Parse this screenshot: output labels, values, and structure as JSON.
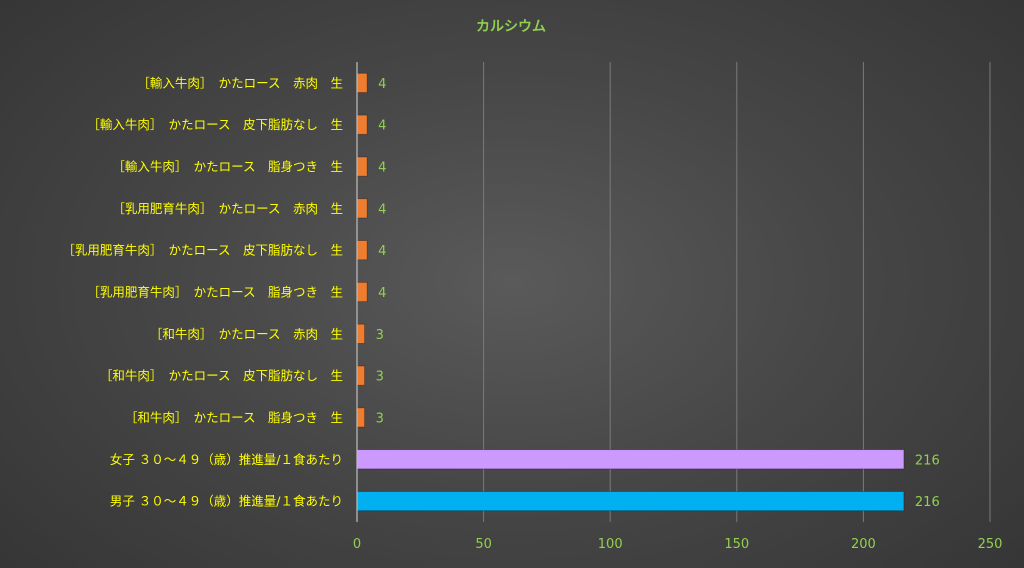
{
  "chart_data": {
    "type": "bar",
    "orientation": "horizontal",
    "title": "カルシウム",
    "categories": [
      "［輸入牛肉］　かたロース　赤肉　生",
      "［輸入牛肉］　かたロース　皮下脂肪なし　生",
      "［輸入牛肉］　かたロース　脂身つき　生",
      "［乳用肥育牛肉］　かたロース　赤肉　生",
      "［乳用肥育牛肉］　かたロース　皮下脂肪なし　生",
      "［乳用肥育牛肉］　かたロース　脂身つき　生",
      "［和牛肉］　かたロース　赤肉　生",
      "［和牛肉］　かたロース　皮下脂肪なし　生",
      "［和牛肉］　かたロース　脂身つき　生",
      "女子 ３０～４９（歳）推進量/１食あたり",
      "男子 ３０～４９（歳）推進量/１食あたり"
    ],
    "values": [
      4,
      4,
      4,
      4,
      4,
      4,
      3,
      3,
      3,
      216,
      216
    ],
    "colors": [
      "#ed7d31",
      "#ed7d31",
      "#ed7d31",
      "#ed7d31",
      "#ed7d31",
      "#ed7d31",
      "#ed7d31",
      "#ed7d31",
      "#ed7d31",
      "#cc99ff",
      "#00b0f0"
    ],
    "xlim": [
      0,
      250
    ],
    "xticks": [
      "0",
      "50",
      "100",
      "150",
      "200",
      "250"
    ],
    "grid": true,
    "legend": "none",
    "title_color": "#92d050",
    "category_label_color": "#ffff00",
    "value_label_color": "#92d050",
    "tick_label_color": "#92d050"
  }
}
